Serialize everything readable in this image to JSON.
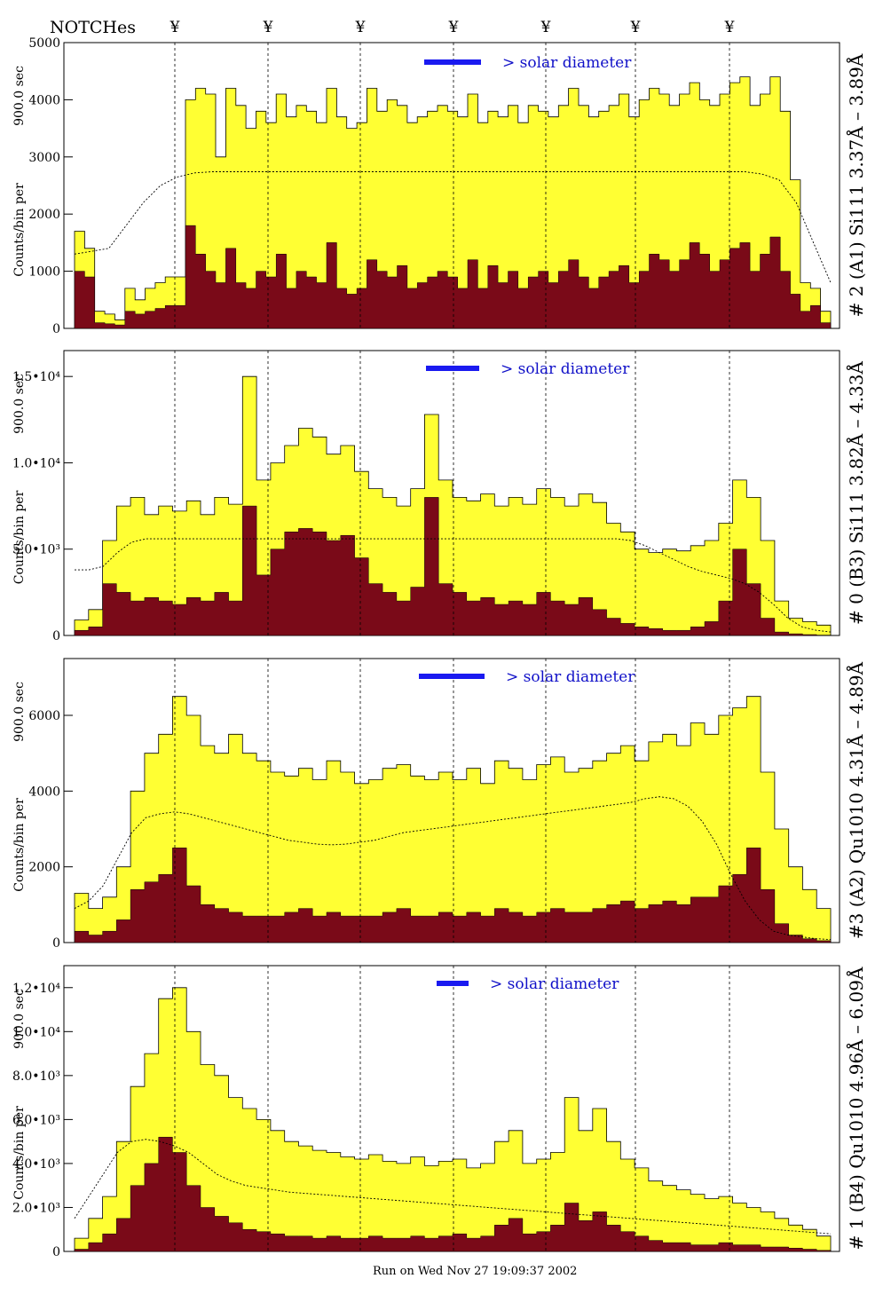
{
  "header": {
    "notches_label": "NOTCHes",
    "notch_symbol": "¥"
  },
  "footer": {
    "run_text": "Run on Wed Nov 27 19:09:37 2002"
  },
  "colors": {
    "fill_high": "#ffff33",
    "fill_low": "#7a0a18",
    "legend_bar": "#1a1af0",
    "legend_text": "#1010c8"
  },
  "chart_data": [
    {
      "type": "area",
      "ylabel_main": "Counts/bin per",
      "ylabel_exposure": "900.0 sec",
      "title_right": "# 2 (A1) Si111  3.37Å – 3.89Å",
      "legend": "> solar diameter",
      "ylim": [
        0,
        5000
      ],
      "yticks": [
        "0",
        "1000",
        "2000",
        "3000",
        "4000",
        "5000"
      ],
      "series": [
        {
          "name": "total",
          "values": [
            1700,
            1400,
            300,
            250,
            150,
            700,
            500,
            700,
            800,
            900,
            900,
            4000,
            4200,
            4100,
            3000,
            4200,
            3900,
            3500,
            3800,
            3600,
            4100,
            3700,
            3900,
            3800,
            3600,
            4200,
            3700,
            3500,
            3600,
            4200,
            3800,
            4000,
            3900,
            3600,
            3700,
            3800,
            3900,
            3800,
            3700,
            4100,
            3600,
            3800,
            3700,
            3900,
            3600,
            3900,
            3800,
            3700,
            3900,
            4200,
            3900,
            3700,
            3800,
            3900,
            4100,
            3700,
            4000,
            4200,
            4100,
            3900,
            4100,
            4300,
            4000,
            3900,
            4100,
            4300,
            4400,
            3900,
            4100,
            4400,
            3800,
            2600,
            800,
            700,
            300
          ]
        },
        {
          "name": "scaled",
          "values": [
            1000,
            900,
            100,
            80,
            60,
            300,
            250,
            300,
            350,
            400,
            400,
            1800,
            1300,
            1000,
            800,
            1400,
            800,
            700,
            1000,
            900,
            1300,
            700,
            1000,
            900,
            800,
            1500,
            700,
            600,
            700,
            1200,
            1000,
            900,
            1100,
            700,
            800,
            900,
            1000,
            900,
            700,
            1200,
            700,
            1100,
            800,
            1000,
            700,
            900,
            1000,
            800,
            1000,
            1200,
            900,
            700,
            900,
            1000,
            1100,
            800,
            1000,
            1300,
            1200,
            1000,
            1200,
            1500,
            1300,
            1000,
            1200,
            1400,
            1500,
            1000,
            1300,
            1600,
            1000,
            600,
            300,
            400,
            100
          ]
        },
        {
          "name": "model",
          "values": [
            1300,
            1350,
            1400,
            1800,
            2200,
            2500,
            2650,
            2720,
            2740,
            2740,
            2740,
            2740,
            2740,
            2740,
            2740,
            2740,
            2740,
            2740,
            2740,
            2740,
            2740,
            2740,
            2740,
            2740,
            2740,
            2740,
            2740,
            2740,
            2740,
            2740,
            2740,
            2740,
            2740,
            2740,
            2740,
            2740,
            2740,
            2740,
            2740,
            2740,
            2700,
            2600,
            2200,
            1500,
            800
          ]
        }
      ]
    },
    {
      "type": "area",
      "ylabel_main": "Counts/bin per",
      "ylabel_exposure": "900.0 sec",
      "title_right": "# 0 (B3) Si111  3.82Å – 4.33Å",
      "legend": "> solar diameter",
      "ylim": [
        0,
        16500
      ],
      "yticks": [
        "0",
        "5.0•10³",
        "1.0•10⁴",
        "1.5•10⁴"
      ],
      "series": [
        {
          "name": "total",
          "values": [
            900,
            1500,
            5500,
            7500,
            8000,
            7000,
            7500,
            7200,
            7800,
            7000,
            8000,
            7600,
            15000,
            9000,
            10000,
            11000,
            12000,
            11500,
            10500,
            11000,
            9500,
            8500,
            8000,
            7500,
            8500,
            12800,
            9000,
            8000,
            7800,
            8200,
            7500,
            8000,
            7600,
            8500,
            8000,
            7500,
            8200,
            7700,
            6500,
            6000,
            5000,
            4800,
            5000,
            4900,
            5200,
            5500,
            6500,
            9000,
            8000,
            5500,
            2000,
            1000,
            800,
            600
          ]
        },
        {
          "name": "scaled",
          "values": [
            300,
            500,
            3000,
            2500,
            2000,
            2200,
            2000,
            1800,
            2200,
            2000,
            2500,
            2000,
            7500,
            3500,
            5000,
            6000,
            6200,
            6000,
            5500,
            5800,
            4500,
            3000,
            2500,
            2000,
            2800,
            8000,
            3000,
            2500,
            2000,
            2200,
            1800,
            2000,
            1800,
            2500,
            2000,
            1800,
            2200,
            1500,
            1000,
            700,
            500,
            400,
            300,
            300,
            500,
            800,
            2000,
            5000,
            3000,
            1000,
            200,
            100,
            50,
            20
          ]
        },
        {
          "name": "model",
          "values": [
            3800,
            3800,
            4000,
            4800,
            5400,
            5600,
            5600,
            5600,
            5600,
            5600,
            5600,
            5600,
            5600,
            5600,
            5600,
            5600,
            5600,
            5600,
            5600,
            5600,
            5600,
            5600,
            5600,
            5600,
            5600,
            5600,
            5600,
            5600,
            5600,
            5600,
            5600,
            5600,
            5600,
            5600,
            5600,
            5600,
            5600,
            5600,
            5600,
            5500,
            5200,
            4800,
            4400,
            4000,
            3700,
            3500,
            3300,
            3000,
            2500,
            1800,
            1000,
            500,
            300,
            200
          ]
        }
      ]
    },
    {
      "type": "area",
      "ylabel_main": "Counts/bin per",
      "ylabel_exposure": "900.0 sec",
      "title_right": "#3 (A2) Qu1010  4.31Å – 4.89Å",
      "legend": "> solar diameter",
      "ylim": [
        0,
        7500
      ],
      "yticks": [
        "0",
        "2000",
        "4000",
        "6000"
      ],
      "series": [
        {
          "name": "total",
          "values": [
            1300,
            900,
            1200,
            2000,
            4000,
            5000,
            5500,
            6500,
            6000,
            5200,
            5000,
            5500,
            5000,
            4800,
            4500,
            4400,
            4600,
            4300,
            4800,
            4500,
            4200,
            4300,
            4600,
            4700,
            4400,
            4300,
            4500,
            4300,
            4600,
            4200,
            4800,
            4600,
            4300,
            4700,
            4900,
            4500,
            4600,
            4800,
            5000,
            5200,
            4800,
            5300,
            5500,
            5200,
            5800,
            5500,
            6000,
            6200,
            6500,
            4500,
            3000,
            2000,
            1400,
            900
          ]
        },
        {
          "name": "scaled",
          "values": [
            300,
            200,
            300,
            600,
            1400,
            1600,
            1800,
            2500,
            1500,
            1000,
            900,
            800,
            700,
            700,
            700,
            800,
            900,
            700,
            800,
            700,
            700,
            700,
            800,
            900,
            700,
            700,
            800,
            700,
            800,
            700,
            900,
            800,
            700,
            800,
            900,
            800,
            800,
            900,
            1000,
            1100,
            900,
            1000,
            1100,
            1000,
            1200,
            1200,
            1500,
            1800,
            2500,
            1400,
            500,
            200,
            100,
            50
          ]
        },
        {
          "name": "model",
          "values": [
            900,
            1100,
            1500,
            2200,
            2900,
            3300,
            3400,
            3450,
            3400,
            3300,
            3200,
            3100,
            3000,
            2900,
            2800,
            2700,
            2650,
            2600,
            2580,
            2600,
            2650,
            2700,
            2800,
            2900,
            2950,
            3000,
            3050,
            3100,
            3150,
            3200,
            3250,
            3300,
            3350,
            3400,
            3450,
            3500,
            3550,
            3600,
            3650,
            3700,
            3800,
            3850,
            3800,
            3600,
            3200,
            2600,
            1800,
            1100,
            600,
            300,
            200,
            150,
            100,
            80
          ]
        }
      ]
    },
    {
      "type": "area",
      "ylabel_main": "Counts/bin per",
      "ylabel_exposure": "900.0 sec",
      "title_right": "# 1 (B4) Qu1010 4.96Å – 6.09Å",
      "legend": "> solar diameter",
      "ylim": [
        0,
        13000
      ],
      "yticks": [
        "0",
        "2.0•10³",
        "4.0•10³",
        "6.0•10³",
        "8.0•10³",
        "1.0•10⁴",
        "1.2•10⁴"
      ],
      "series": [
        {
          "name": "total",
          "values": [
            600,
            1500,
            2500,
            5000,
            7500,
            9000,
            11500,
            12000,
            10000,
            8500,
            8000,
            7000,
            6500,
            6000,
            5500,
            5000,
            4800,
            4600,
            4500,
            4300,
            4200,
            4400,
            4100,
            4000,
            4300,
            3900,
            4100,
            4200,
            3800,
            4000,
            5000,
            5500,
            4000,
            4200,
            4500,
            7000,
            5500,
            6500,
            5000,
            4200,
            3800,
            3200,
            3000,
            2800,
            2600,
            2400,
            2500,
            2200,
            2000,
            1800,
            1500,
            1200,
            1000,
            700
          ]
        },
        {
          "name": "scaled",
          "values": [
            100,
            400,
            800,
            1500,
            3000,
            4000,
            5200,
            4500,
            3000,
            2000,
            1600,
            1300,
            1000,
            900,
            800,
            700,
            700,
            600,
            700,
            600,
            600,
            700,
            600,
            600,
            700,
            600,
            700,
            800,
            600,
            700,
            1200,
            1500,
            800,
            900,
            1200,
            2200,
            1400,
            1800,
            1200,
            900,
            700,
            500,
            400,
            400,
            300,
            300,
            400,
            300,
            300,
            200,
            200,
            150,
            100,
            50
          ]
        },
        {
          "name": "model",
          "values": [
            1500,
            2500,
            3500,
            4500,
            5000,
            5100,
            5000,
            4800,
            4500,
            4000,
            3500,
            3200,
            3000,
            2900,
            2800,
            2700,
            2650,
            2600,
            2550,
            2500,
            2450,
            2400,
            2350,
            2300,
            2250,
            2200,
            2150,
            2100,
            2050,
            2000,
            1950,
            1900,
            1850,
            1800,
            1750,
            1700,
            1650,
            1600,
            1550,
            1500,
            1450,
            1400,
            1350,
            1300,
            1250,
            1200,
            1150,
            1100,
            1050,
            1000,
            950,
            900,
            850,
            800
          ]
        }
      ]
    }
  ]
}
